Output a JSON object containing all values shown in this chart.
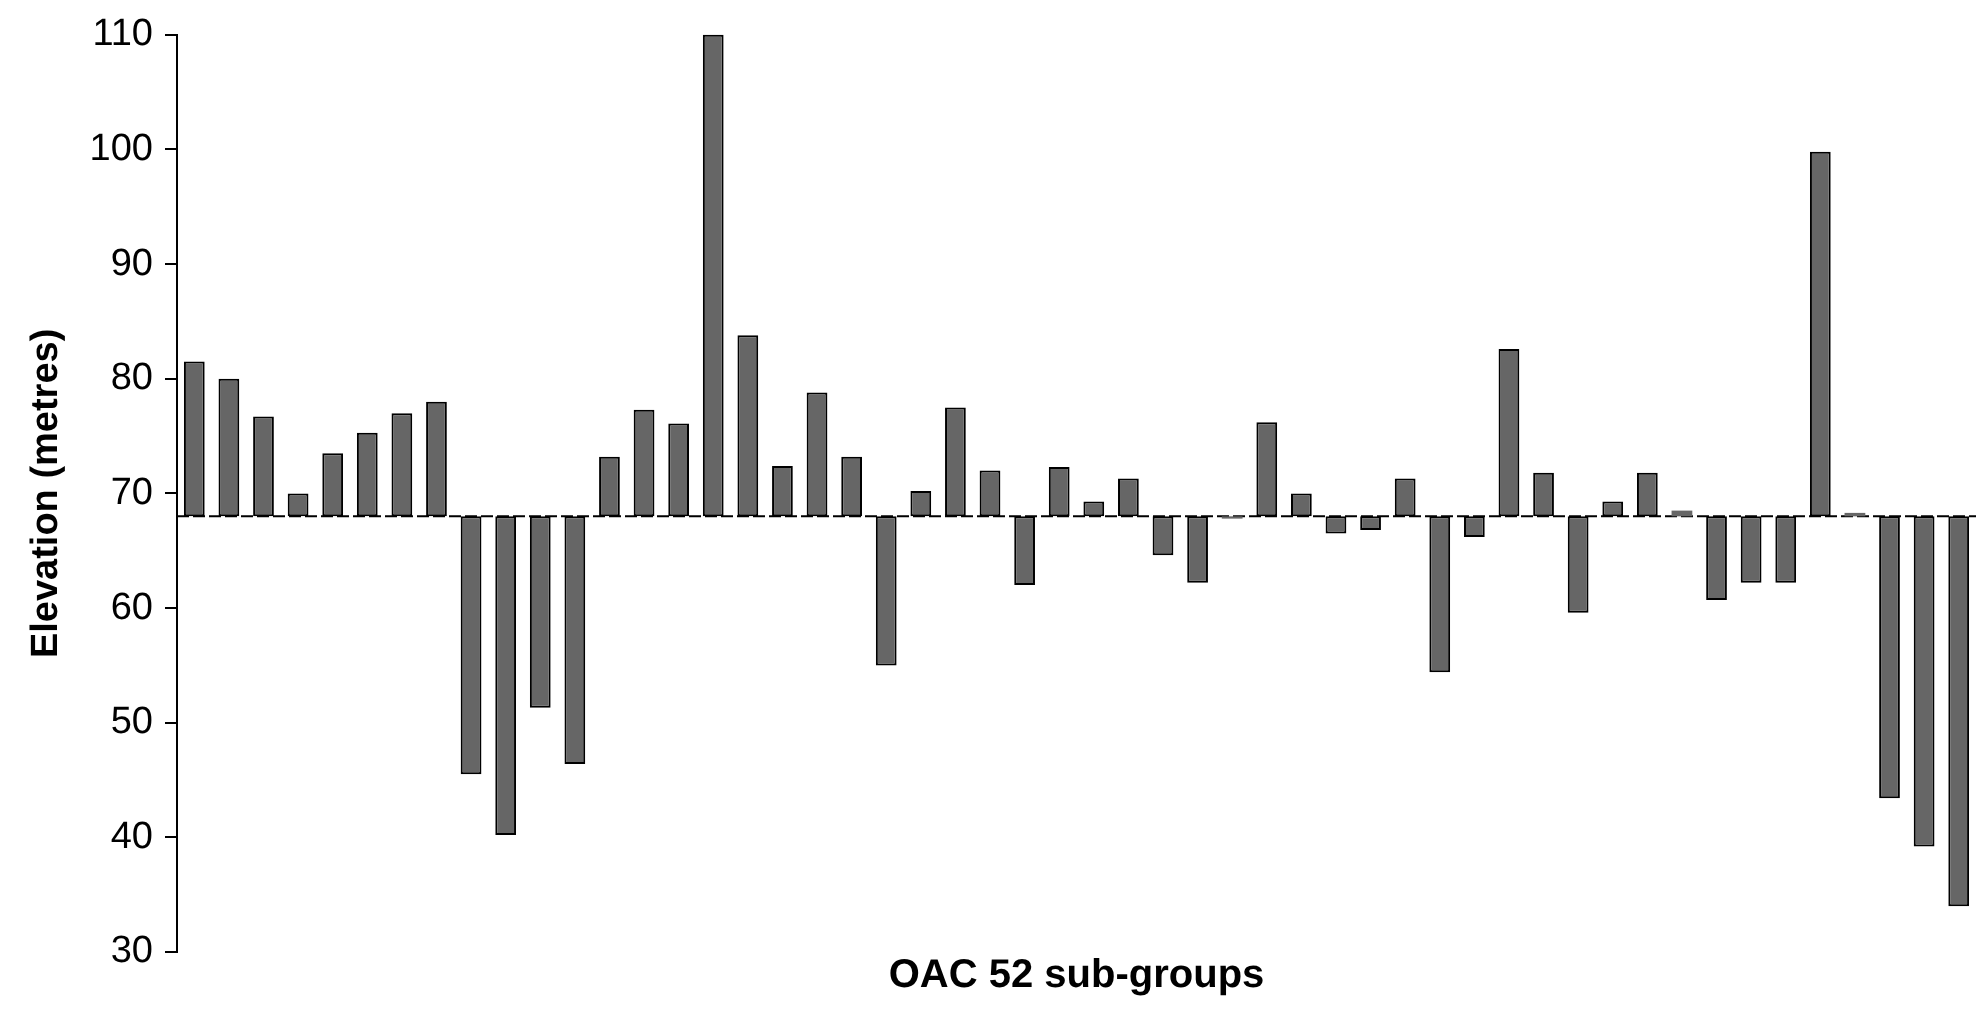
{
  "chart_data": {
    "type": "bar",
    "xlabel": "OAC 52 sub-groups",
    "ylabel": "Elevation (metres)",
    "categories": [
      null,
      null,
      null,
      null,
      null,
      null,
      null,
      null,
      null,
      null,
      null,
      null,
      null,
      null,
      null,
      null,
      null,
      null,
      null,
      null,
      null,
      null,
      null,
      null,
      null,
      null,
      null,
      null,
      null,
      null,
      null,
      null,
      null,
      null,
      null,
      null,
      null,
      null,
      null,
      null,
      null,
      null,
      null,
      null,
      null,
      null,
      null,
      null,
      null,
      null,
      null,
      null
    ],
    "base": [
      68,
      68,
      68,
      68,
      68,
      68,
      68,
      68,
      68,
      68,
      68,
      68,
      68,
      68,
      68,
      68,
      68,
      68,
      68,
      68,
      68,
      68,
      68,
      68,
      68,
      68,
      68,
      68,
      68,
      68,
      68,
      68,
      68,
      68,
      68,
      68,
      68,
      68,
      68,
      68,
      68,
      68,
      68,
      68,
      68,
      68,
      68,
      68,
      68,
      68,
      68,
      68
    ],
    "values": [
      13.5,
      12,
      8.7,
      2,
      5.5,
      7.3,
      9,
      10,
      -22.5,
      -27.8,
      -16.7,
      -21.6,
      5.2,
      9.3,
      8.1,
      42,
      15.8,
      4.4,
      10.8,
      5.2,
      -13,
      2.2,
      9.5,
      4,
      -6,
      4.3,
      1.3,
      3.3,
      -3.4,
      -5.8,
      -0.2,
      8.2,
      2,
      -1.5,
      -1.2,
      3.3,
      -13.6,
      -1.8,
      14.6,
      3.8,
      -8.4,
      1.3,
      3.8,
      0.5,
      -7.3,
      -5.8,
      -5.8,
      31.8,
      0.3,
      -24.6,
      -28.8,
      -34
    ],
    "color": "#666666",
    "ref_lines": [
      {
        "axis": "y",
        "value": 68,
        "line_style": "dashed",
        "color": "#000000"
      }
    ],
    "ylim": [
      30,
      110
    ],
    "yticks": [
      30,
      40,
      50,
      60,
      70,
      80,
      90,
      100,
      110
    ],
    "grid": false,
    "legend": false
  }
}
